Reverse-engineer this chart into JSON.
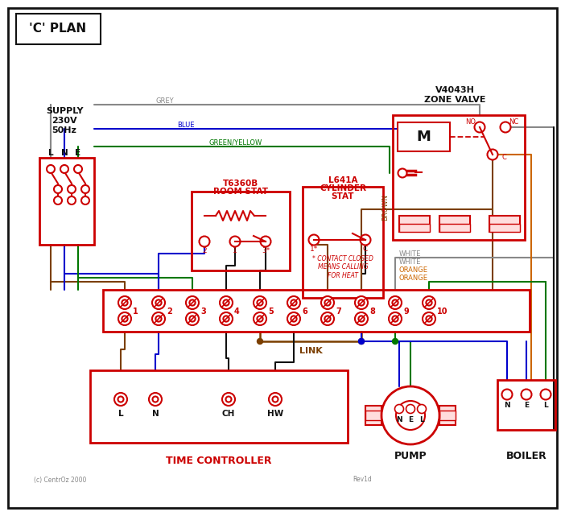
{
  "title": "'C' PLAN",
  "supply_lines": [
    "SUPPLY",
    "230V",
    "50Hz"
  ],
  "lne": [
    "L",
    "N",
    "E"
  ],
  "zone_valve_line1": "V4043H",
  "zone_valve_line2": "ZONE VALVE",
  "room_stat_line1": "T6360B",
  "room_stat_line2": "ROOM STAT",
  "cyl_stat_line1": "L641A",
  "cyl_stat_line2": "CYLINDER",
  "cyl_stat_line3": "STAT",
  "contact_note": "* CONTACT CLOSED\nMEANS CALLING\nFOR HEAT",
  "tc_title": "TIME CONTROLLER",
  "tc_terms": [
    "L",
    "N",
    "CH",
    "HW"
  ],
  "pump_title": "PUMP",
  "boiler_title": "BOILER",
  "term_numbers": [
    "1",
    "2",
    "3",
    "4",
    "5",
    "6",
    "7",
    "8",
    "9",
    "10"
  ],
  "link_label": "LINK",
  "label_grey": "GREY",
  "label_blue": "BLUE",
  "label_gy": "GREEN/YELLOW",
  "label_brown": "BROWN",
  "label_white": "WHITE",
  "label_orange": "ORANGE",
  "copyright": "(c) CentrOz 2000",
  "revision": "Rev1d",
  "RED": "#cc0000",
  "BLUE": "#0000cc",
  "GREEN": "#007700",
  "BROWN": "#7B3F00",
  "GREY": "#888888",
  "ORANGE": "#cc6600",
  "BLACK": "#111111",
  "WHITE": "#ffffff"
}
